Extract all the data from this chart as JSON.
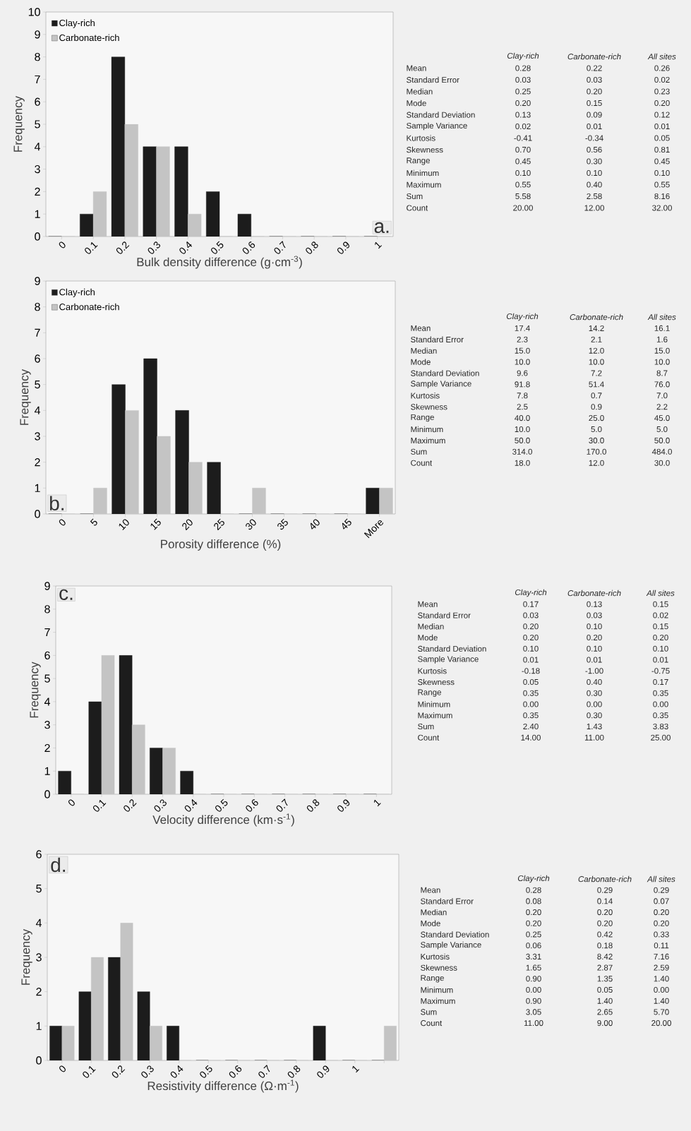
{
  "chart_data": [
    {
      "type": "bar",
      "categories": [
        "0",
        "0.1",
        "0.2",
        "0.3",
        "0.4",
        "0.5",
        "0.6",
        "0.7",
        "0.8",
        "0.9",
        "1"
      ],
      "xlabel": "Bulk density difference (g·cm$^{-3}$)",
      "ylabel": "Frequency",
      "ylim": [
        0,
        10
      ],
      "yticks": [
        0,
        1,
        2,
        3,
        4,
        5,
        6,
        7,
        8,
        9,
        10
      ],
      "legend": "top left",
      "annotations": [
        "a."
      ],
      "series": [
        {
          "name": "Clay-rich",
          "color": "#1c1c1c",
          "values": [
            0,
            1,
            8,
            4,
            4,
            2,
            1,
            0,
            0,
            0,
            0
          ]
        },
        {
          "name": "Carbonate-rich",
          "color": "#c4c4c4",
          "values": [
            0,
            2,
            5,
            4,
            1,
            0,
            0,
            0,
            0,
            0,
            0
          ]
        }
      ]
    },
    {
      "type": "other",
      "categories": [
        "Clay-rich",
        "Carbonate-rich",
        "All sites"
      ],
      "y_categories": [
        "Mean",
        "Standard Error",
        "Median",
        "Mode",
        "Standard Deviation",
        "Sample Variance",
        "Kurtosis",
        "Skewness",
        "Range",
        "Minimum",
        "Maximum",
        "Sum",
        "Count"
      ],
      "cell_labels": [
        [
          "0.28",
          "0.22",
          "0.26"
        ],
        [
          "0.03",
          "0.03",
          "0.02"
        ],
        [
          "0.25",
          "0.20",
          "0.23"
        ],
        [
          "0.20",
          "0.15",
          "0.20"
        ],
        [
          "0.13",
          "0.09",
          "0.12"
        ],
        [
          "0.02",
          "0.01",
          "0.01"
        ],
        [
          "-0.41",
          "-0.34",
          "0.05"
        ],
        [
          "0.70",
          "0.56",
          "0.81"
        ],
        [
          "0.45",
          "0.30",
          "0.45"
        ],
        [
          "0.10",
          "0.10",
          "0.10"
        ],
        [
          "0.55",
          "0.40",
          "0.55"
        ],
        [
          "5.58",
          "2.58",
          "8.16"
        ],
        [
          "20.00",
          "12.00",
          "32.00"
        ]
      ]
    },
    {
      "type": "bar",
      "categories": [
        "0",
        "5",
        "10",
        "15",
        "20",
        "25",
        "30",
        "35",
        "40",
        "45",
        "More"
      ],
      "xlabel": "Porosity difference (%)",
      "ylabel": "Frequency",
      "ylim": [
        0,
        9
      ],
      "yticks": [
        0,
        1,
        2,
        3,
        4,
        5,
        6,
        7,
        8,
        9
      ],
      "legend": "top left",
      "annotations": [
        "b."
      ],
      "series": [
        {
          "name": "Clay-rich",
          "color": "#1c1c1c",
          "values": [
            0,
            0,
            5,
            6,
            4,
            2,
            0,
            0,
            0,
            0,
            1
          ]
        },
        {
          "name": "Carbonate-rich",
          "color": "#c4c4c4",
          "values": [
            0,
            1,
            4,
            3,
            2,
            0,
            1,
            0,
            0,
            0,
            1
          ]
        }
      ]
    },
    {
      "type": "other",
      "categories": [
        "Clay-rich",
        "Carbonate-rich",
        "All sites"
      ],
      "y_categories": [
        "Mean",
        "Standard Error",
        "Median",
        "Mode",
        "Standard Deviation",
        "Sample Variance",
        "Kurtosis",
        "Skewness",
        "Range",
        "Minimum",
        "Maximum",
        "Sum",
        "Count"
      ],
      "cell_labels": [
        [
          "17.4",
          "14.2",
          "16.1"
        ],
        [
          "2.3",
          "2.1",
          "1.6"
        ],
        [
          "15.0",
          "12.0",
          "15.0"
        ],
        [
          "10.0",
          "10.0",
          "10.0"
        ],
        [
          "9.6",
          "7.2",
          "8.7"
        ],
        [
          "91.8",
          "51.4",
          "76.0"
        ],
        [
          "7.8",
          "0.7",
          "7.0"
        ],
        [
          "2.5",
          "0.9",
          "2.2"
        ],
        [
          "40.0",
          "25.0",
          "45.0"
        ],
        [
          "10.0",
          "5.0",
          "5.0"
        ],
        [
          "50.0",
          "30.0",
          "50.0"
        ],
        [
          "314.0",
          "170.0",
          "484.0"
        ],
        [
          "18.0",
          "12.0",
          "30.0"
        ]
      ]
    },
    {
      "type": "bar",
      "categories": [
        "0",
        "0.1",
        "0.2",
        "0.3",
        "0.4",
        "0.5",
        "0.6",
        "0.7",
        "0.8",
        "0.9",
        "1"
      ],
      "xlabel": "Velocity difference (km·s$^{-1}$)",
      "ylabel": "Frequency",
      "ylim": [
        0,
        9
      ],
      "yticks": [
        0,
        1,
        2,
        3,
        4,
        5,
        6,
        7,
        8,
        9
      ],
      "annotations": [
        "c."
      ],
      "series": [
        {
          "color": "#1c1c1c",
          "values": [
            1,
            4,
            6,
            2,
            1,
            0,
            0,
            0,
            0,
            0,
            0
          ]
        },
        {
          "color": "#c4c4c4",
          "values": [
            0,
            6,
            3,
            2,
            0,
            0,
            0,
            0,
            0,
            0,
            0
          ]
        }
      ]
    },
    {
      "type": "other",
      "categories": [
        "Clay-rich",
        "Carbonate-rich",
        "All sites"
      ],
      "y_categories": [
        "Mean",
        "Standard Error",
        "Median",
        "Mode",
        "Standard Deviation",
        "Sample Variance",
        "Kurtosis",
        "Skewness",
        "Range",
        "Minimum",
        "Maximum",
        "Sum",
        "Count"
      ],
      "cell_labels": [
        [
          "0.17",
          "0.13",
          "0.15"
        ],
        [
          "0.03",
          "0.03",
          "0.02"
        ],
        [
          "0.20",
          "0.10",
          "0.15"
        ],
        [
          "0.20",
          "0.20",
          "0.20"
        ],
        [
          "0.10",
          "0.10",
          "0.10"
        ],
        [
          "0.01",
          "0.01",
          "0.01"
        ],
        [
          "-0.18",
          "-1.00",
          "-0.75"
        ],
        [
          "0.05",
          "0.40",
          "0.17"
        ],
        [
          "0.35",
          "0.30",
          "0.35"
        ],
        [
          "0.00",
          "0.00",
          "0.00"
        ],
        [
          "0.35",
          "0.30",
          "0.35"
        ],
        [
          "2.40",
          "1.43",
          "3.83"
        ],
        [
          "14.00",
          "11.00",
          "25.00"
        ]
      ]
    },
    {
      "type": "bar",
      "categories": [
        "0",
        "0.1",
        "0.2",
        "0.3",
        "0.4",
        "0.5",
        "0.6",
        "0.7",
        "0.8",
        "0.9",
        "1",
        null
      ],
      "xlabel": "Resistivity difference (Ω·m$^{-1}$)",
      "ylabel": "Frequency",
      "ylim": [
        0,
        6
      ],
      "yticks": [
        0,
        1,
        2,
        3,
        4,
        5,
        6
      ],
      "annotations": [
        "d."
      ],
      "series": [
        {
          "color": "#1c1c1c",
          "values": [
            1,
            2,
            3,
            2,
            1,
            0,
            0,
            0,
            0,
            1,
            0,
            0
          ]
        },
        {
          "color": "#c4c4c4",
          "values": [
            1,
            3,
            4,
            1,
            0,
            0,
            0,
            0,
            0,
            0,
            0,
            1
          ]
        }
      ]
    },
    {
      "type": "other",
      "categories": [
        "Clay-rich",
        "Carbonate-rich",
        "All sites"
      ],
      "y_categories": [
        "Mean",
        "Standard Error",
        "Median",
        "Mode",
        "Standard Deviation",
        "Sample Variance",
        "Kurtosis",
        "Skewness",
        "Range",
        "Minimum",
        "Maximum",
        "Sum",
        "Count"
      ],
      "cell_labels": [
        [
          "0.28",
          "0.29",
          "0.29"
        ],
        [
          "0.08",
          "0.14",
          "0.07"
        ],
        [
          "0.20",
          "0.20",
          "0.20"
        ],
        [
          "0.20",
          "0.20",
          "0.20"
        ],
        [
          "0.25",
          "0.42",
          "0.33"
        ],
        [
          "0.06",
          "0.18",
          "0.11"
        ],
        [
          "3.31",
          "8.42",
          "7.16"
        ],
        [
          "1.65",
          "2.87",
          "2.59"
        ],
        [
          "0.90",
          "1.35",
          "1.40"
        ],
        [
          "0.00",
          "0.05",
          "0.00"
        ],
        [
          "0.90",
          "1.40",
          "1.40"
        ],
        [
          "3.05",
          "2.65",
          "5.70"
        ],
        [
          "11.00",
          "9.00",
          "20.00"
        ]
      ]
    }
  ]
}
